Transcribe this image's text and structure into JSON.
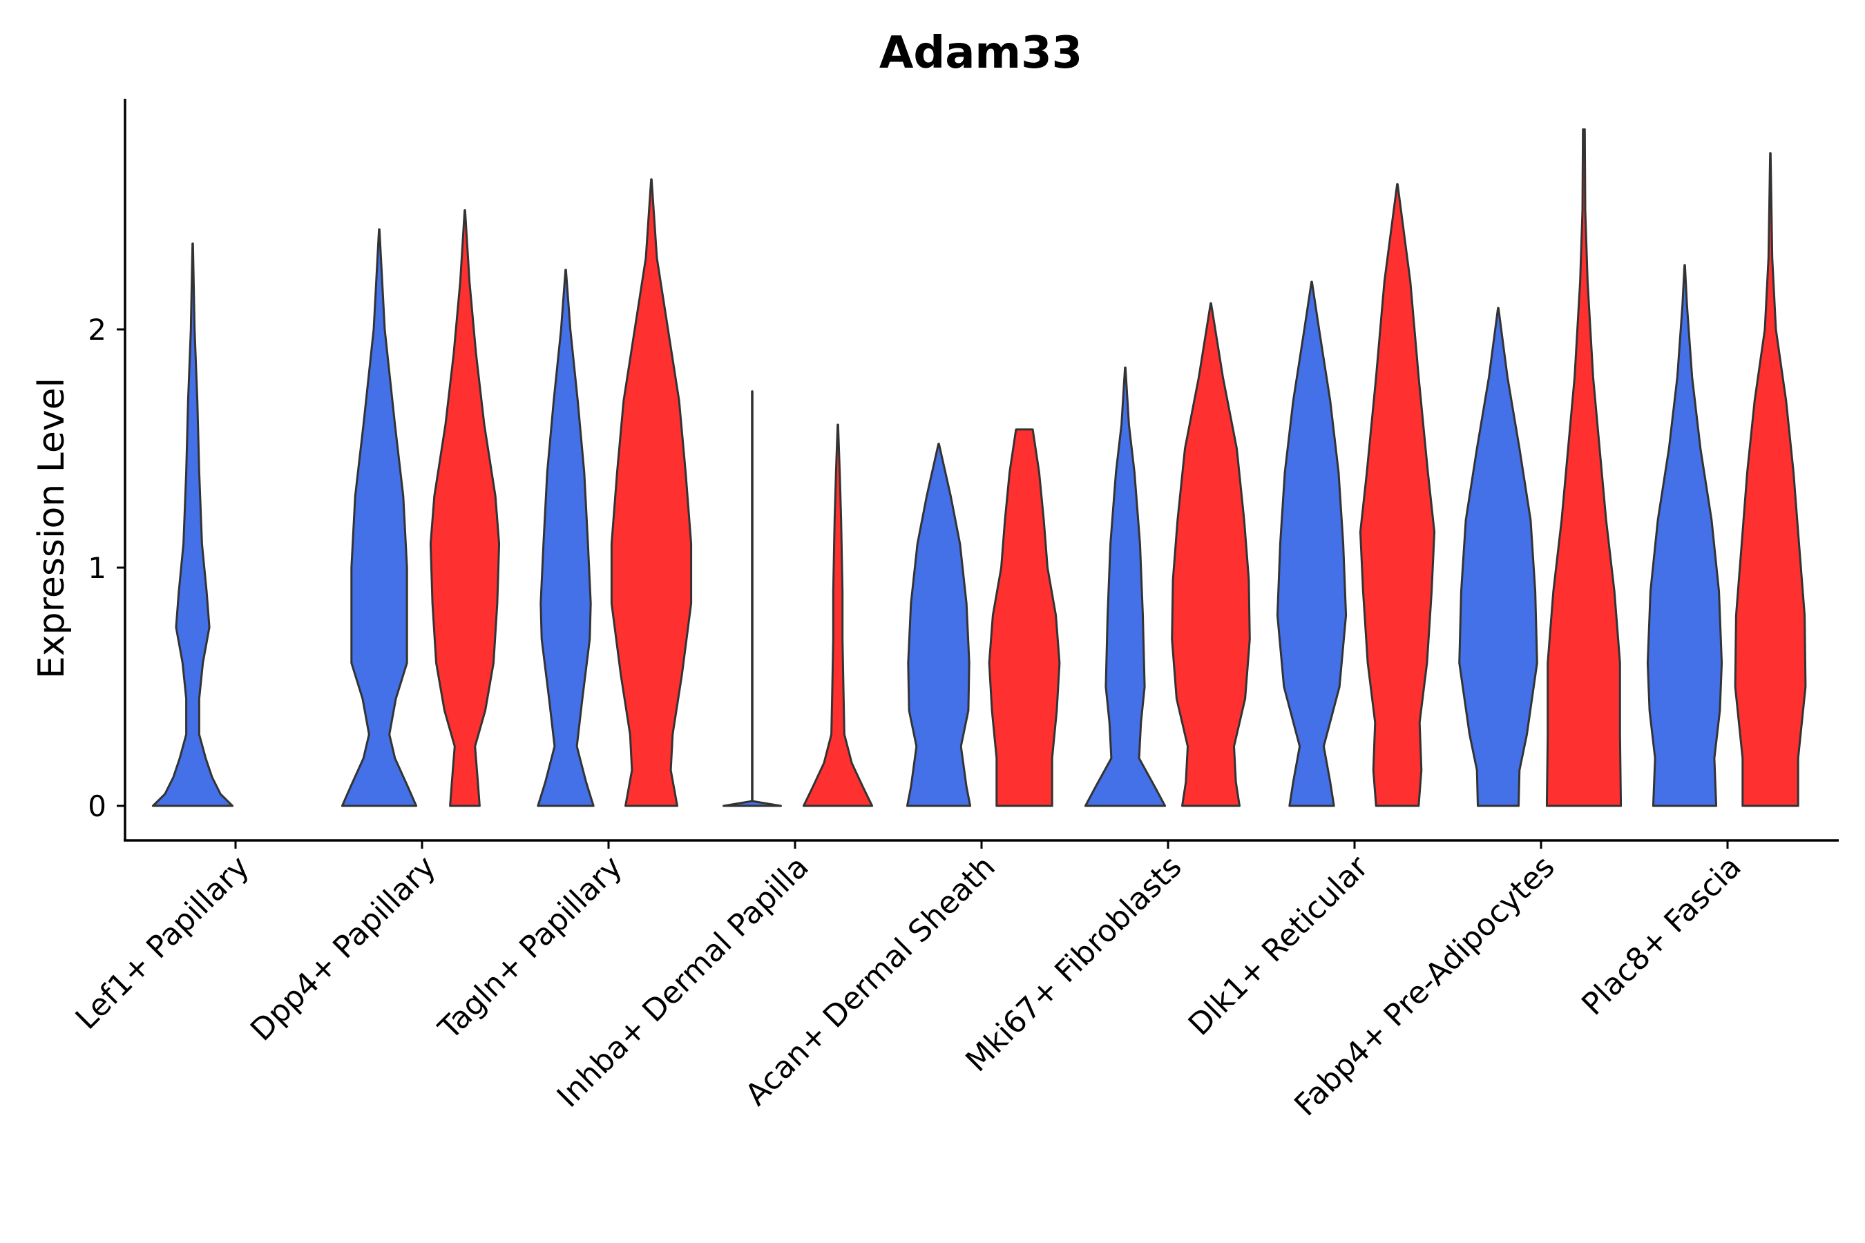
{
  "chart_data": {
    "type": "violin",
    "title": "Adam33",
    "xlabel": "",
    "ylabel": "Expression Level",
    "ylim": [
      -0.14,
      2.96
    ],
    "yticks": [
      0,
      1,
      2
    ],
    "ytick_labels": [
      "0",
      "1",
      "2"
    ],
    "grid": false,
    "legend": "none",
    "categories": [
      "Lef1+ Papillary",
      "Dpp4+ Papillary",
      "Tagln+ Papillary",
      "Inhba+ Dermal Papilla",
      "Acan+ Dermal Sheath",
      "Mki67+ Fibroblasts",
      "Dlk1+ Reticular",
      "Fabp4+ Pre-Adipocytes",
      "Plac8+ Fascia"
    ],
    "series": [
      {
        "name": "group 1",
        "color": "#4470E8",
        "violins": [
          {
            "category": "Lef1+ Papillary",
            "max": 2.36,
            "profile": [
              [
                0,
                0.86
              ],
              [
                0.05,
                0.6
              ],
              [
                0.12,
                0.42
              ],
              [
                0.2,
                0.28
              ],
              [
                0.3,
                0.14
              ],
              [
                0.45,
                0.14
              ],
              [
                0.6,
                0.22
              ],
              [
                0.75,
                0.36
              ],
              [
                0.9,
                0.3
              ],
              [
                1.1,
                0.2
              ],
              [
                1.4,
                0.14
              ],
              [
                1.7,
                0.1
              ],
              [
                2.0,
                0.04
              ],
              [
                2.36,
                0.004
              ]
            ]
          },
          {
            "category": "Dpp4+ Papillary",
            "max": 2.42,
            "profile": [
              [
                0,
                0.8
              ],
              [
                0.08,
                0.62
              ],
              [
                0.2,
                0.34
              ],
              [
                0.3,
                0.22
              ],
              [
                0.45,
                0.36
              ],
              [
                0.6,
                0.6
              ],
              [
                0.8,
                0.6
              ],
              [
                1.0,
                0.6
              ],
              [
                1.3,
                0.52
              ],
              [
                1.6,
                0.34
              ],
              [
                2.0,
                0.12
              ],
              [
                2.42,
                0.004
              ]
            ]
          },
          {
            "category": "Tagln+ Papillary",
            "max": 2.25,
            "profile": [
              [
                0,
                0.6
              ],
              [
                0.1,
                0.44
              ],
              [
                0.25,
                0.24
              ],
              [
                0.45,
                0.36
              ],
              [
                0.7,
                0.52
              ],
              [
                0.85,
                0.54
              ],
              [
                1.1,
                0.48
              ],
              [
                1.4,
                0.4
              ],
              [
                1.7,
                0.26
              ],
              [
                2.0,
                0.1
              ],
              [
                2.25,
                0.004
              ]
            ]
          },
          {
            "category": "Inhba+ Dermal Papilla",
            "max": 1.74,
            "profile": [
              [
                0,
                0.62
              ],
              [
                0.02,
                0.004
              ],
              [
                1.74,
                0.004
              ]
            ]
          },
          {
            "category": "Acan+ Dermal Sheath",
            "max": 1.52,
            "profile": [
              [
                0,
                0.68
              ],
              [
                0.08,
                0.6
              ],
              [
                0.25,
                0.48
              ],
              [
                0.4,
                0.64
              ],
              [
                0.6,
                0.66
              ],
              [
                0.85,
                0.6
              ],
              [
                1.1,
                0.46
              ],
              [
                1.3,
                0.26
              ],
              [
                1.52,
                0.004
              ]
            ]
          },
          {
            "category": "Mki67+ Fibroblasts",
            "max": 1.84,
            "profile": [
              [
                0,
                0.86
              ],
              [
                0.08,
                0.64
              ],
              [
                0.2,
                0.3
              ],
              [
                0.35,
                0.34
              ],
              [
                0.5,
                0.42
              ],
              [
                0.8,
                0.38
              ],
              [
                1.1,
                0.32
              ],
              [
                1.4,
                0.2
              ],
              [
                1.6,
                0.08
              ],
              [
                1.84,
                0.004
              ]
            ]
          },
          {
            "category": "Dlk1+ Reticular",
            "max": 2.2,
            "profile": [
              [
                0,
                0.48
              ],
              [
                0.1,
                0.4
              ],
              [
                0.25,
                0.26
              ],
              [
                0.5,
                0.6
              ],
              [
                0.8,
                0.74
              ],
              [
                1.1,
                0.68
              ],
              [
                1.4,
                0.58
              ],
              [
                1.7,
                0.4
              ],
              [
                2.0,
                0.16
              ],
              [
                2.2,
                0.004
              ]
            ]
          },
          {
            "category": "Fabp4+ Pre-Adipocytes",
            "max": 2.09,
            "profile": [
              [
                0,
                0.44
              ],
              [
                0.15,
                0.46
              ],
              [
                0.3,
                0.62
              ],
              [
                0.6,
                0.84
              ],
              [
                0.9,
                0.8
              ],
              [
                1.2,
                0.7
              ],
              [
                1.5,
                0.46
              ],
              [
                1.8,
                0.2
              ],
              [
                2.09,
                0.004
              ]
            ]
          },
          {
            "category": "Plac8+ Fascia",
            "max": 2.27,
            "profile": [
              [
                0,
                0.68
              ],
              [
                0.2,
                0.64
              ],
              [
                0.4,
                0.76
              ],
              [
                0.6,
                0.8
              ],
              [
                0.9,
                0.74
              ],
              [
                1.2,
                0.58
              ],
              [
                1.5,
                0.34
              ],
              [
                1.8,
                0.16
              ],
              [
                2.1,
                0.05
              ],
              [
                2.27,
                0.004
              ]
            ]
          }
        ]
      },
      {
        "name": "group 2",
        "color": "#FF3030",
        "violins": [
          {
            "category": "Dpp4+ Papillary",
            "max": 2.5,
            "profile": [
              [
                0,
                0.32
              ],
              [
                0.1,
                0.28
              ],
              [
                0.25,
                0.22
              ],
              [
                0.4,
                0.44
              ],
              [
                0.6,
                0.62
              ],
              [
                0.85,
                0.7
              ],
              [
                1.1,
                0.74
              ],
              [
                1.3,
                0.66
              ],
              [
                1.6,
                0.42
              ],
              [
                1.9,
                0.24
              ],
              [
                2.2,
                0.1
              ],
              [
                2.5,
                0.004
              ]
            ]
          },
          {
            "category": "Tagln+ Papillary",
            "max": 2.63,
            "profile": [
              [
                0,
                0.56
              ],
              [
                0.15,
                0.42
              ],
              [
                0.3,
                0.46
              ],
              [
                0.55,
                0.66
              ],
              [
                0.85,
                0.86
              ],
              [
                1.1,
                0.86
              ],
              [
                1.4,
                0.74
              ],
              [
                1.7,
                0.6
              ],
              [
                2.0,
                0.36
              ],
              [
                2.3,
                0.12
              ],
              [
                2.63,
                0.004
              ]
            ]
          },
          {
            "category": "Inhba+ Dermal Papilla",
            "max": 1.6,
            "profile": [
              [
                0,
                0.74
              ],
              [
                0.08,
                0.54
              ],
              [
                0.18,
                0.3
              ],
              [
                0.3,
                0.14
              ],
              [
                0.5,
                0.12
              ],
              [
                0.7,
                0.1
              ],
              [
                0.9,
                0.1
              ],
              [
                1.2,
                0.07
              ],
              [
                1.4,
                0.04
              ],
              [
                1.6,
                0.004
              ]
            ]
          },
          {
            "category": "Acan+ Dermal Sheath",
            "max": 1.58,
            "profile": [
              [
                0,
                0.6
              ],
              [
                0.2,
                0.6
              ],
              [
                0.4,
                0.7
              ],
              [
                0.6,
                0.76
              ],
              [
                0.8,
                0.68
              ],
              [
                1.0,
                0.5
              ],
              [
                1.2,
                0.42
              ],
              [
                1.4,
                0.32
              ],
              [
                1.58,
                0.18
              ]
            ]
          },
          {
            "category": "Mki67+ Fibroblasts",
            "max": 2.11,
            "profile": [
              [
                0,
                0.62
              ],
              [
                0.1,
                0.54
              ],
              [
                0.25,
                0.5
              ],
              [
                0.45,
                0.74
              ],
              [
                0.7,
                0.84
              ],
              [
                0.95,
                0.82
              ],
              [
                1.2,
                0.72
              ],
              [
                1.5,
                0.56
              ],
              [
                1.8,
                0.26
              ],
              [
                2.11,
                0.004
              ]
            ]
          },
          {
            "category": "Dlk1+ Reticular",
            "max": 2.61,
            "profile": [
              [
                0,
                0.46
              ],
              [
                0.15,
                0.52
              ],
              [
                0.35,
                0.48
              ],
              [
                0.6,
                0.64
              ],
              [
                0.9,
                0.74
              ],
              [
                1.15,
                0.8
              ],
              [
                1.4,
                0.66
              ],
              [
                1.8,
                0.46
              ],
              [
                2.2,
                0.28
              ],
              [
                2.61,
                0.004
              ]
            ]
          },
          {
            "category": "Fabp4+ Pre-Adipocytes",
            "max": 2.84,
            "profile": [
              [
                0,
                0.8
              ],
              [
                0.3,
                0.78
              ],
              [
                0.6,
                0.78
              ],
              [
                0.9,
                0.66
              ],
              [
                1.2,
                0.48
              ],
              [
                1.5,
                0.34
              ],
              [
                1.8,
                0.2
              ],
              [
                2.2,
                0.08
              ],
              [
                2.5,
                0.03
              ],
              [
                2.84,
                0.02
              ]
            ]
          },
          {
            "category": "Plac8+ Fascia",
            "max": 2.74,
            "profile": [
              [
                0,
                0.6
              ],
              [
                0.2,
                0.6
              ],
              [
                0.5,
                0.76
              ],
              [
                0.8,
                0.74
              ],
              [
                1.1,
                0.62
              ],
              [
                1.4,
                0.5
              ],
              [
                1.7,
                0.34
              ],
              [
                2.0,
                0.12
              ],
              [
                2.3,
                0.04
              ],
              [
                2.74,
                0.004
              ]
            ]
          }
        ]
      }
    ]
  }
}
